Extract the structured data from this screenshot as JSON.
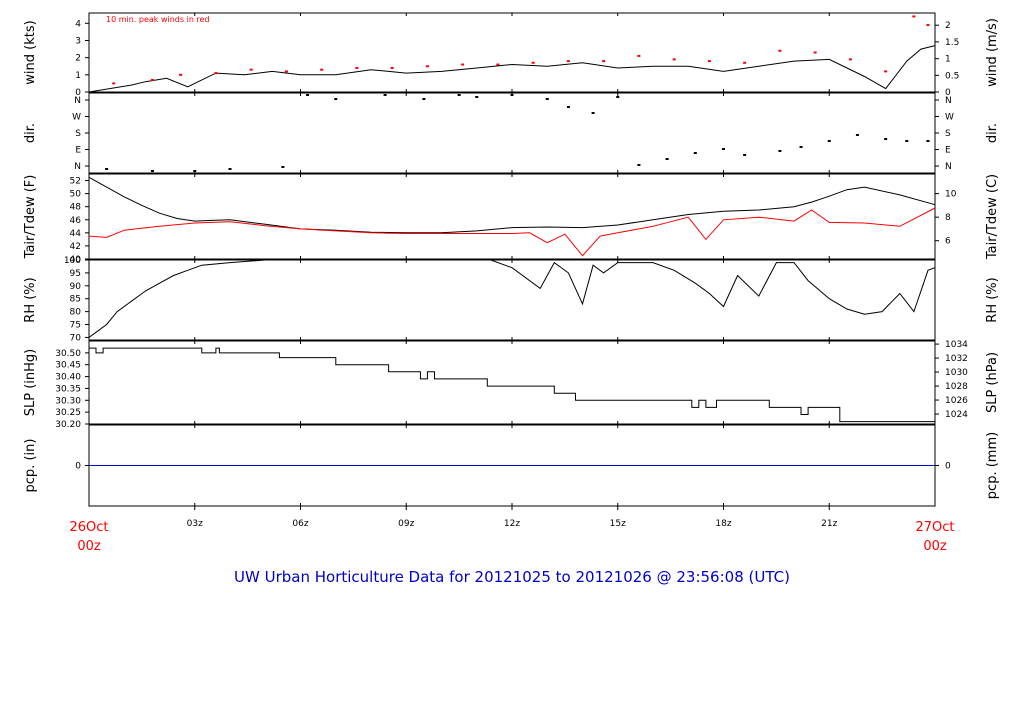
{
  "title": "UW Urban Horticulture Data for 20121025  to  20121026 @ 23:56:08  (UTC)",
  "colors": {
    "red": "#ff0000",
    "blue": "#0000cc",
    "black": "#000000"
  },
  "chart_data": [
    {
      "type": "line",
      "ylabel": "wind (kts)",
      "ylabel_right": "wind (m/s)",
      "annotation": "10 min. peak winds in red",
      "ylim": [
        0,
        4.6
      ],
      "yticks": [
        0,
        1,
        2,
        3,
        4
      ],
      "yticks_right": [
        "0",
        "0.5",
        "1",
        "1.5",
        "2"
      ],
      "yticks_right_vals": [
        0,
        0.97,
        1.94,
        2.92,
        3.89
      ],
      "series": [
        {
          "color": "#000000",
          "x": [
            0,
            1.2,
            1.6,
            2.2,
            2.8,
            3.6,
            4.4,
            5.2,
            6.0,
            7.0,
            8.0,
            9.0,
            10.0,
            11.0,
            12.0,
            13.0,
            14.0,
            15.0,
            16.0,
            17.0,
            18.0,
            19.0,
            20.0,
            21.0,
            22.0,
            22.6,
            23.2,
            23.6,
            24.0
          ],
          "y": [
            0,
            0.4,
            0.6,
            0.8,
            0.3,
            1.1,
            1.0,
            1.2,
            1.0,
            1.0,
            1.3,
            1.1,
            1.2,
            1.4,
            1.6,
            1.5,
            1.7,
            1.4,
            1.5,
            1.5,
            1.2,
            1.5,
            1.8,
            1.9,
            0.9,
            0.2,
            1.8,
            2.5,
            2.7
          ]
        },
        {
          "color": "#ff0000",
          "x": [
            0.7,
            1.8,
            2.6,
            3.6,
            4.6,
            5.6,
            6.6,
            7.6,
            8.6,
            9.6,
            10.6,
            11.6,
            12.6,
            13.6,
            14.6,
            15.6,
            16.6,
            17.6,
            18.6,
            19.6,
            20.6,
            21.6,
            22.6,
            23.4,
            23.8
          ],
          "y": [
            0.5,
            0.7,
            1.0,
            1.1,
            1.3,
            1.2,
            1.3,
            1.4,
            1.4,
            1.5,
            1.6,
            1.6,
            1.7,
            1.8,
            1.8,
            2.1,
            1.9,
            1.8,
            1.7,
            2.4,
            2.3,
            1.9,
            1.2,
            4.4,
            3.9
          ]
        }
      ]
    },
    {
      "type": "scatter",
      "ylabel": "dir.",
      "ylabel_right": "dir.",
      "yticks_left": [
        "N",
        "W",
        "S",
        "E",
        "N"
      ],
      "yticks_right": [
        "N",
        "W",
        "S",
        "E",
        "N"
      ],
      "ylim": [
        0,
        4
      ],
      "series": [
        {
          "color": "#000000",
          "x": [
            0.5,
            1.8,
            3.0,
            4.0,
            5.5,
            6.2,
            7.0,
            8.4,
            9.5,
            10.5,
            11.0,
            12.0,
            13.0,
            13.6,
            14.3,
            15.0,
            15.6,
            16.4,
            17.2,
            18.0,
            18.6,
            19.6,
            20.2,
            21.0,
            21.8,
            22.6,
            23.2,
            23.8
          ],
          "y": [
            0.2,
            0.1,
            0.1,
            0.2,
            0.3,
            3.9,
            3.7,
            3.9,
            3.7,
            3.9,
            3.8,
            3.9,
            3.7,
            3.3,
            3.0,
            3.8,
            0.4,
            0.7,
            1.0,
            1.2,
            0.9,
            1.1,
            1.3,
            1.6,
            1.9,
            1.7,
            1.6,
            1.6
          ]
        }
      ]
    },
    {
      "type": "line",
      "ylabel": "Tair/Tdew (F)",
      "ylabel_right": "Tair/Tdew (C)",
      "ylim": [
        40,
        53
      ],
      "yticks": [
        40,
        42,
        44,
        46,
        48,
        50,
        52
      ],
      "yticks_right": [
        "6",
        "8",
        "10"
      ],
      "yticks_right_vals": [
        42.8,
        46.4,
        50.0
      ],
      "series": [
        {
          "name": "Tair",
          "color": "#000000",
          "x": [
            0,
            0.5,
            1,
            1.5,
            2,
            2.5,
            3,
            3.5,
            4,
            5,
            6,
            7,
            8,
            9,
            10,
            11,
            12,
            13,
            14,
            15,
            16,
            17,
            18,
            19,
            20,
            20.5,
            21,
            21.5,
            22,
            23,
            24
          ],
          "y": [
            52.5,
            51.0,
            49.5,
            48.2,
            47.0,
            46.2,
            45.8,
            45.9,
            46.0,
            45.3,
            44.6,
            44.4,
            44.1,
            44.0,
            44.0,
            44.3,
            44.8,
            44.9,
            44.8,
            45.2,
            46.0,
            46.8,
            47.3,
            47.5,
            48.0,
            48.7,
            49.6,
            50.6,
            51.0,
            49.8,
            48.3
          ]
        },
        {
          "name": "Tdew",
          "color": "#ff0000",
          "x": [
            0,
            0.5,
            1,
            2,
            3,
            4,
            5,
            6,
            7,
            8,
            9,
            10,
            11,
            12,
            12.5,
            13,
            13.5,
            14,
            14.5,
            15,
            16,
            17,
            17.5,
            18,
            19,
            20,
            20.5,
            21,
            22,
            23,
            24
          ],
          "y": [
            43.5,
            43.3,
            44.4,
            45.0,
            45.5,
            45.7,
            45.1,
            44.6,
            44.3,
            44.0,
            43.9,
            43.9,
            43.9,
            43.9,
            44.0,
            42.5,
            43.8,
            40.5,
            43.5,
            44.0,
            45.0,
            46.4,
            43.0,
            46.0,
            46.4,
            45.8,
            47.5,
            45.6,
            45.5,
            45.0,
            47.8
          ]
        }
      ]
    },
    {
      "type": "line",
      "ylabel": "RH (%)",
      "ylabel_right": "RH (%)",
      "ylim": [
        69,
        100
      ],
      "yticks": [
        70,
        75,
        80,
        85,
        90,
        95,
        100
      ],
      "series": [
        {
          "color": "#000000",
          "x": [
            0,
            0.2,
            0.5,
            0.8,
            1.2,
            1.6,
            2.0,
            2.4,
            2.8,
            3.2,
            4,
            5,
            6,
            7,
            8,
            9,
            10,
            11,
            11.4,
            12,
            12.8,
            13.2,
            13.6,
            14.0,
            14.3,
            14.6,
            15,
            15.4,
            16,
            16.6,
            17.2,
            17.6,
            18.0,
            18.4,
            19,
            19.5,
            20,
            20.4,
            21,
            21.5,
            22,
            22.5,
            23,
            23.4,
            23.8,
            24
          ],
          "y": [
            70,
            72,
            75,
            80,
            84,
            88,
            91,
            94,
            96,
            98,
            99,
            100,
            100,
            100,
            100,
            100,
            100,
            100,
            100,
            97,
            89,
            99,
            95,
            83,
            98,
            95,
            99,
            99,
            99,
            96,
            91,
            87,
            82,
            94,
            86,
            99,
            99,
            92,
            85,
            81,
            79,
            80,
            87,
            80,
            96,
            97
          ]
        }
      ]
    },
    {
      "type": "line",
      "ylabel": "SLP (inHg)",
      "ylabel_right": "SLP (hPa)",
      "ylim": [
        30.2,
        30.55
      ],
      "yticks": [
        30.2,
        30.25,
        30.3,
        30.35,
        30.4,
        30.45,
        30.5
      ],
      "yticks_labels": [
        "30.20",
        "30.25",
        "30.30",
        "30.35",
        "30.40",
        "30.45",
        "30.50"
      ],
      "yticks_right": [
        "1024",
        "1026",
        "1028",
        "1030",
        "1032",
        "1034"
      ],
      "yticks_right_vals": [
        30.242,
        30.301,
        30.36,
        30.419,
        30.478,
        30.537
      ],
      "series": [
        {
          "color": "#000000",
          "x": [
            0,
            0.2,
            0.2,
            0.4,
            0.4,
            0.6,
            0.6,
            3.2,
            3.2,
            3.6,
            3.6,
            3.7,
            3.7,
            5.4,
            5.4,
            5.5,
            5.5,
            7.0,
            7.0,
            8.5,
            8.5,
            9.4,
            9.4,
            9.6,
            9.6,
            9.8,
            9.8,
            11.3,
            11.3,
            13.2,
            13.2,
            13.8,
            13.8,
            14.1,
            14.1,
            17.1,
            17.1,
            17.3,
            17.3,
            17.5,
            17.5,
            17.8,
            17.8,
            19.3,
            19.3,
            20.2,
            20.2,
            20.4,
            20.4,
            21.3,
            21.3,
            24
          ],
          "y": [
            30.52,
            30.52,
            30.5,
            30.5,
            30.52,
            30.52,
            30.52,
            30.52,
            30.5,
            30.5,
            30.52,
            30.52,
            30.5,
            30.5,
            30.48,
            30.48,
            30.48,
            30.48,
            30.45,
            30.45,
            30.42,
            30.42,
            30.39,
            30.39,
            30.42,
            30.42,
            30.39,
            30.39,
            30.36,
            30.36,
            30.33,
            30.33,
            30.3,
            30.3,
            30.3,
            30.3,
            30.27,
            30.27,
            30.3,
            30.3,
            30.27,
            30.27,
            30.3,
            30.3,
            30.27,
            30.27,
            30.24,
            30.24,
            30.27,
            30.27,
            30.21,
            30.21
          ]
        }
      ]
    },
    {
      "type": "line",
      "ylabel": "pcp. (in)",
      "ylabel_right": "pcp. (mm)",
      "ylim": [
        -1,
        1
      ],
      "yticks": [
        0
      ],
      "yticks_right": [
        "0"
      ],
      "series": [
        {
          "color": "#0000cc",
          "x": [
            0,
            24
          ],
          "y": [
            0,
            0
          ]
        }
      ]
    }
  ],
  "xaxis": {
    "ticks": [
      {
        "hour": 3,
        "label": "03z"
      },
      {
        "hour": 6,
        "label": "06z"
      },
      {
        "hour": 9,
        "label": "09z"
      },
      {
        "hour": 12,
        "label": "12z"
      },
      {
        "hour": 15,
        "label": "15z"
      },
      {
        "hour": 18,
        "label": "18z"
      },
      {
        "hour": 21,
        "label": "21z"
      }
    ],
    "start_label_1": "26Oct",
    "start_label_2": "00z",
    "end_label_1": "27Oct",
    "end_label_2": "00z"
  }
}
